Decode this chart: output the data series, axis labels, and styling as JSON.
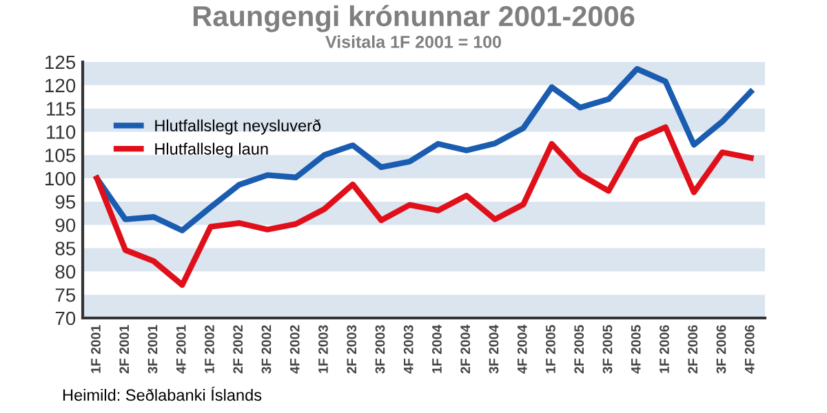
{
  "chart_data": {
    "type": "line",
    "title": "Raungengi krónunnar 2001-2006",
    "subtitle": "Visitala 1F 2001 = 100",
    "categories": [
      "1F 2001",
      "2F 2001",
      "3F 2001",
      "4F 2001",
      "1F 2002",
      "2F 2002",
      "3F 2002",
      "4F 2002",
      "1F 2003",
      "2F 2003",
      "3F 2003",
      "4F 2003",
      "1F 2004",
      "2F 2004",
      "3F 2004",
      "4F 2004",
      "1F 2005",
      "2F 2005",
      "3F 2005",
      "4F 2005",
      "1F 2006",
      "2F 2006",
      "3F 2006",
      "4F 2006"
    ],
    "series": [
      {
        "name": "Hlutfallslegt neysluverð",
        "color": "#1a5cb0",
        "values": [
          100,
          91.2,
          91.7,
          88.8,
          93.8,
          98.6,
          100.7,
          100.2,
          105,
          107.1,
          102.4,
          103.6,
          107.4,
          106,
          107.5,
          110.8,
          119.6,
          115.2,
          117,
          123.5,
          120.8,
          107.2,
          112.2,
          118.6
        ]
      },
      {
        "name": "Hlutfallsleg laun",
        "color": "#e0101a",
        "values": [
          100,
          84.6,
          82.2,
          77.1,
          89.6,
          90.4,
          89,
          90.2,
          93.4,
          98.7,
          91,
          94.3,
          93.1,
          96.3,
          91.2,
          94.4,
          107.4,
          100.8,
          97.3,
          108.3,
          111,
          97,
          105.6,
          104.4
        ]
      }
    ],
    "ylim": [
      70,
      125
    ],
    "yticks": [
      70,
      75,
      80,
      85,
      90,
      95,
      100,
      105,
      110,
      115,
      120,
      125
    ],
    "bands": [
      {
        "axis": "y",
        "from": 70,
        "to": 75,
        "color": "#dbe5f0"
      },
      {
        "axis": "y",
        "from": 80,
        "to": 85,
        "color": "#dbe5f0"
      },
      {
        "axis": "y",
        "from": 90,
        "to": 95,
        "color": "#dbe5f0"
      },
      {
        "axis": "y",
        "from": 100,
        "to": 105,
        "color": "#dbe5f0"
      },
      {
        "axis": "y",
        "from": 110,
        "to": 115,
        "color": "#dbe5f0"
      },
      {
        "axis": "y",
        "from": 120,
        "to": 125,
        "color": "#dbe5f0"
      }
    ],
    "legend": "top left",
    "annotations": [
      "Heimild: Seðlabanki Íslands"
    ]
  }
}
